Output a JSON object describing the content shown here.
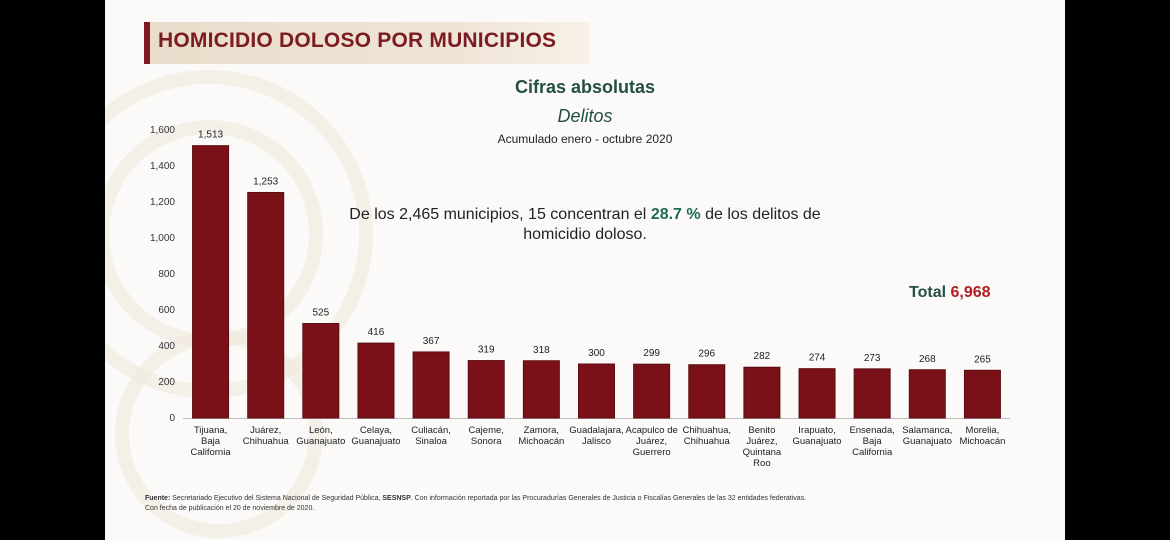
{
  "title": "HOMICIDIO DOLOSO POR MUNICIPIOS",
  "subtitle": "Cifras absolutas",
  "subtitle2": "Delitos",
  "period": "Acumulado enero - octubre 2020",
  "note": {
    "prefix": "De los 2,465 municipios, 15 concentran el ",
    "highlight": "28.7 %",
    "suffix": " de los delitos de homicidio doloso."
  },
  "total": {
    "label": "Total ",
    "value": "6,968"
  },
  "source": {
    "label": "Fuente:",
    "text1": " Secretariado Ejecutivo del Sistema Nacional de Seguridad Pública, ",
    "bold": "SESNSP",
    "text2": ". Con información reportada por las Procuradurías Generales de Justicia o Fiscalías Generales de las 32 entidades federativas.",
    "line2": "Con fecha de publicación el 20 de noviembre de 2020."
  },
  "colors": {
    "bar": "#7b1118",
    "bar_edge": "#5c0c12",
    "title": "#7b1c22",
    "accent_green": "#1e6b52",
    "total_red": "#b01e24"
  },
  "chart_data": {
    "type": "bar",
    "categories": [
      [
        "Tijuana,",
        "Baja",
        "California"
      ],
      [
        "Juárez,",
        "Chihuahua"
      ],
      [
        "León,",
        "Guanajuato"
      ],
      [
        "Celaya,",
        "Guanajuato"
      ],
      [
        "Culiacán,",
        "Sinaloa"
      ],
      [
        "Cajeme,",
        "Sonora"
      ],
      [
        "Zamora,",
        "Michoacán"
      ],
      [
        "Guadalajara,",
        "Jalisco"
      ],
      [
        "Acapulco de",
        "Juárez,",
        "Guerrero"
      ],
      [
        "Chihuahua,",
        "Chihuahua"
      ],
      [
        "Benito",
        "Juárez,",
        "Quintana",
        "Roo"
      ],
      [
        "Irapuato,",
        "Guanajuato"
      ],
      [
        "Ensenada,",
        "Baja",
        "California"
      ],
      [
        "Salamanca,",
        "Guanajuato"
      ],
      [
        "Morelia,",
        "Michoacán"
      ]
    ],
    "values": [
      1513,
      1253,
      525,
      416,
      367,
      319,
      318,
      300,
      299,
      296,
      282,
      274,
      273,
      268,
      265
    ],
    "value_labels": [
      "1,513",
      "1,253",
      "525",
      "416",
      "367",
      "319",
      "318",
      "300",
      "299",
      "296",
      "282",
      "274",
      "273",
      "268",
      "265"
    ],
    "ylim": [
      0,
      1600
    ],
    "yticks": [
      0,
      200,
      400,
      600,
      800,
      1000,
      1200,
      1400,
      1600
    ],
    "ytick_labels": [
      "0",
      "200",
      "400",
      "600",
      "800",
      "1,000",
      "1,200",
      "1,400",
      "1,600"
    ],
    "grid": false,
    "legend": "none"
  }
}
